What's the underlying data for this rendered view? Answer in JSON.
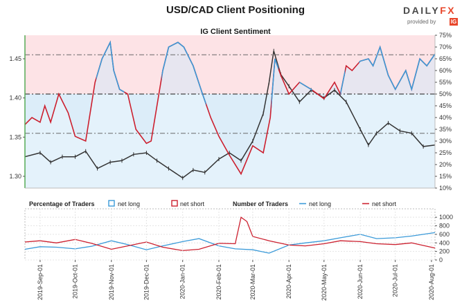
{
  "header": {
    "title": "USD/CAD Client Positioning",
    "subtitle": "IG Client Sentiment",
    "logo_a": "DAILY",
    "logo_b": "FX",
    "logo_provided": "provided by",
    "logo_ig": "IG"
  },
  "legend": {
    "pct_label": "Percentage of Traders",
    "pct_long": "net long",
    "pct_short": "net short",
    "num_label": "Number of Traders",
    "num_long": "net long",
    "num_short": "net short"
  },
  "colors": {
    "price": "#333333",
    "net_long": "#3a9ad9",
    "net_short": "#cc1f2e",
    "long_fill": "#e4f2fb",
    "short_fill": "#fde3e6",
    "frame": "#55aa55"
  },
  "chart_data": [
    {
      "type": "line",
      "title": "USD/CAD Client Positioning",
      "subtitle": "IG Client Sentiment",
      "x_start": "2019-08-19",
      "x_end": "2020-08-04",
      "x_ticks": [
        "2019-Sep-01",
        "2019-Oct-01",
        "2019-Nov-01",
        "2019-Dec-01",
        "2020-Jan-01",
        "2020-Feb-01",
        "2020-Mar-01",
        "2020-Apr-01",
        "2020-May-01",
        "2020-Jun-01",
        "2020-Jul-01",
        "2020-Aug-01"
      ],
      "left_axis": {
        "ylim": [
          1.285,
          1.48
        ],
        "ticks": [
          "1.30",
          "1.35",
          "1.40",
          "1.45"
        ]
      },
      "right_axis": {
        "ylim": [
          10,
          75
        ],
        "ticks": [
          "10%",
          "15%",
          "20%",
          "25%",
          "30%",
          "35%",
          "40%",
          "45%",
          "50%",
          "55%",
          "60%",
          "65%",
          "70%",
          "75%"
        ],
        "reference_lines": [
          33.3,
          50,
          66.7
        ]
      },
      "price_series": {
        "name": "USD/CAD",
        "points": [
          [
            "2019-08-19",
            1.325
          ],
          [
            "2019-09-01",
            1.33
          ],
          [
            "2019-09-10",
            1.318
          ],
          [
            "2019-09-20",
            1.325
          ],
          [
            "2019-10-01",
            1.325
          ],
          [
            "2019-10-10",
            1.332
          ],
          [
            "2019-10-20",
            1.31
          ],
          [
            "2019-10-31",
            1.318
          ],
          [
            "2019-11-10",
            1.32
          ],
          [
            "2019-11-20",
            1.328
          ],
          [
            "2019-12-01",
            1.33
          ],
          [
            "2019-12-10",
            1.32
          ],
          [
            "2019-12-20",
            1.31
          ],
          [
            "2020-01-01",
            1.298
          ],
          [
            "2020-01-10",
            1.308
          ],
          [
            "2020-01-20",
            1.305
          ],
          [
            "2020-02-01",
            1.322
          ],
          [
            "2020-02-10",
            1.33
          ],
          [
            "2020-02-20",
            1.32
          ],
          [
            "2020-03-01",
            1.345
          ],
          [
            "2020-03-10",
            1.38
          ],
          [
            "2020-03-15",
            1.42
          ],
          [
            "2020-03-19",
            1.46
          ],
          [
            "2020-03-25",
            1.43
          ],
          [
            "2020-04-01",
            1.415
          ],
          [
            "2020-04-10",
            1.395
          ],
          [
            "2020-04-20",
            1.41
          ],
          [
            "2020-05-01",
            1.4
          ],
          [
            "2020-05-10",
            1.41
          ],
          [
            "2020-05-20",
            1.395
          ],
          [
            "2020-06-01",
            1.36
          ],
          [
            "2020-06-08",
            1.34
          ],
          [
            "2020-06-15",
            1.355
          ],
          [
            "2020-06-25",
            1.368
          ],
          [
            "2020-07-05",
            1.358
          ],
          [
            "2020-07-15",
            1.355
          ],
          [
            "2020-07-25",
            1.338
          ],
          [
            "2020-08-04",
            1.34
          ]
        ]
      },
      "pct_net_long_series": {
        "name": "net long",
        "points": [
          [
            "2019-08-19",
            37
          ],
          [
            "2019-08-25",
            40
          ],
          [
            "2019-09-01",
            38
          ],
          [
            "2019-09-05",
            45
          ],
          [
            "2019-09-10",
            38
          ],
          [
            "2019-09-17",
            50
          ],
          [
            "2019-09-25",
            42
          ],
          [
            "2019-10-01",
            32
          ],
          [
            "2019-10-10",
            30
          ],
          [
            "2019-10-18",
            55
          ],
          [
            "2019-10-24",
            65
          ],
          [
            "2019-10-31",
            72
          ],
          [
            "2019-11-03",
            60
          ],
          [
            "2019-11-08",
            52
          ],
          [
            "2019-11-15",
            50
          ],
          [
            "2019-11-22",
            35
          ],
          [
            "2019-12-01",
            29
          ],
          [
            "2019-12-05",
            30
          ],
          [
            "2019-12-10",
            45
          ],
          [
            "2019-12-15",
            60
          ],
          [
            "2019-12-20",
            70
          ],
          [
            "2019-12-28",
            72
          ],
          [
            "2020-01-02",
            70
          ],
          [
            "2020-01-10",
            62
          ],
          [
            "2020-01-18",
            50
          ],
          [
            "2020-01-25",
            40
          ],
          [
            "2020-02-01",
            32
          ],
          [
            "2020-02-10",
            24
          ],
          [
            "2020-02-20",
            16
          ],
          [
            "2020-03-01",
            28
          ],
          [
            "2020-03-10",
            25
          ],
          [
            "2020-03-16",
            40
          ],
          [
            "2020-03-20",
            65
          ],
          [
            "2020-03-25",
            58
          ],
          [
            "2020-04-01",
            50
          ],
          [
            "2020-04-10",
            55
          ],
          [
            "2020-04-20",
            52
          ],
          [
            "2020-05-01",
            48
          ],
          [
            "2020-05-10",
            55
          ],
          [
            "2020-05-15",
            50
          ],
          [
            "2020-05-20",
            62
          ],
          [
            "2020-05-25",
            60
          ],
          [
            "2020-06-01",
            64
          ],
          [
            "2020-06-08",
            65
          ],
          [
            "2020-06-12",
            62
          ],
          [
            "2020-06-18",
            70
          ],
          [
            "2020-06-25",
            58
          ],
          [
            "2020-07-01",
            52
          ],
          [
            "2020-07-10",
            60
          ],
          [
            "2020-07-15",
            52
          ],
          [
            "2020-07-22",
            65
          ],
          [
            "2020-07-28",
            62
          ],
          [
            "2020-08-04",
            67
          ]
        ]
      },
      "net_long_segments": [
        [
          "2019-10-19",
          "2019-11-12"
        ],
        [
          "2019-12-14",
          "2020-01-21"
        ],
        [
          "2020-03-17",
          "2020-03-23"
        ],
        [
          "2020-04-10",
          "2020-04-21"
        ],
        [
          "2020-05-15",
          "2020-05-19"
        ],
        [
          "2020-05-31",
          "2020-08-04"
        ]
      ]
    },
    {
      "type": "line",
      "title": "",
      "legend": [
        "Percentage of Traders: net long",
        "Percentage of Traders: net short",
        "Number of Traders: net long",
        "Number of Traders: net short"
      ],
      "y_ticks": [
        "0",
        "200",
        "400",
        "600",
        "800",
        "1000"
      ],
      "ylim": [
        0,
        1100
      ],
      "series": [
        {
          "name": "net long",
          "points": [
            [
              "2019-08-19",
              250
            ],
            [
              "2019-09-01",
              310
            ],
            [
              "2019-09-15",
              300
            ],
            [
              "2019-10-01",
              260
            ],
            [
              "2019-10-15",
              320
            ],
            [
              "2019-11-01",
              450
            ],
            [
              "2019-11-15",
              360
            ],
            [
              "2019-12-01",
              240
            ],
            [
              "2019-12-15",
              330
            ],
            [
              "2020-01-01",
              430
            ],
            [
              "2020-01-15",
              500
            ],
            [
              "2020-02-01",
              330
            ],
            [
              "2020-02-15",
              260
            ],
            [
              "2020-03-01",
              240
            ],
            [
              "2020-03-15",
              160
            ],
            [
              "2020-04-01",
              350
            ],
            [
              "2020-04-15",
              400
            ],
            [
              "2020-05-01",
              450
            ],
            [
              "2020-05-15",
              520
            ],
            [
              "2020-06-01",
              600
            ],
            [
              "2020-06-15",
              500
            ],
            [
              "2020-07-01",
              520
            ],
            [
              "2020-07-15",
              560
            ],
            [
              "2020-08-04",
              640
            ]
          ]
        },
        {
          "name": "net short",
          "points": [
            [
              "2019-08-19",
              420
            ],
            [
              "2019-09-01",
              450
            ],
            [
              "2019-09-15",
              400
            ],
            [
              "2019-10-01",
              480
            ],
            [
              "2019-10-15",
              390
            ],
            [
              "2019-11-01",
              250
            ],
            [
              "2019-11-15",
              330
            ],
            [
              "2019-12-01",
              420
            ],
            [
              "2019-12-15",
              300
            ],
            [
              "2020-01-01",
              220
            ],
            [
              "2020-01-15",
              250
            ],
            [
              "2020-02-01",
              390
            ],
            [
              "2020-02-15",
              380
            ],
            [
              "2020-02-20",
              1000
            ],
            [
              "2020-02-25",
              900
            ],
            [
              "2020-03-01",
              550
            ],
            [
              "2020-03-15",
              450
            ],
            [
              "2020-04-01",
              350
            ],
            [
              "2020-04-15",
              330
            ],
            [
              "2020-05-01",
              380
            ],
            [
              "2020-05-15",
              450
            ],
            [
              "2020-06-01",
              430
            ],
            [
              "2020-06-15",
              380
            ],
            [
              "2020-07-01",
              360
            ],
            [
              "2020-07-15",
              400
            ],
            [
              "2020-08-04",
              280
            ]
          ]
        }
      ]
    }
  ]
}
